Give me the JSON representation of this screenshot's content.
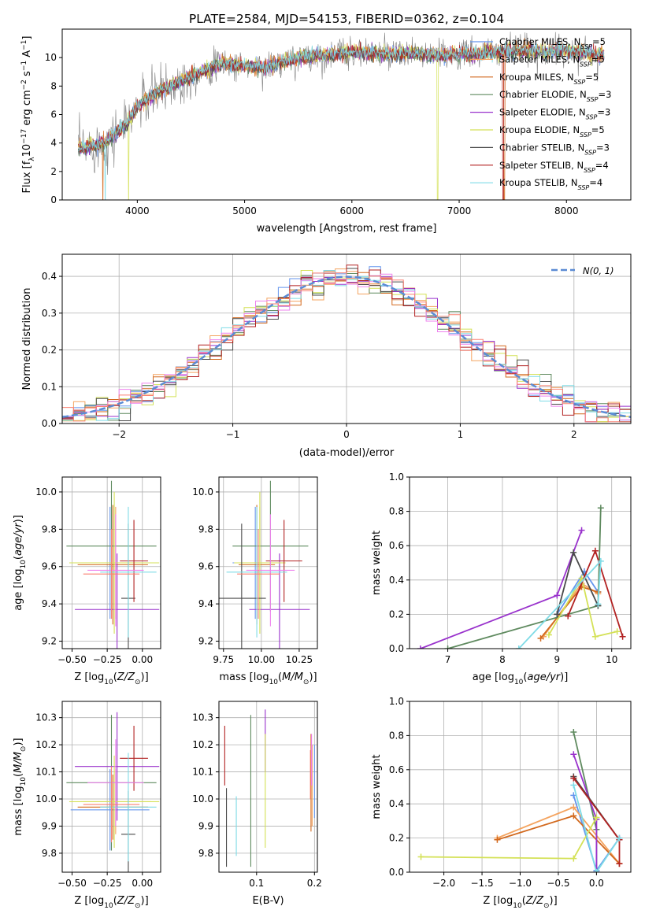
{
  "title": "PLATE=2584, MJD=54153, FIBERID=0362, z=0.104",
  "colors": {
    "data": "#808080",
    "Chabrier MILES": "#6495ed",
    "Salpeter MILES": "#f4a460",
    "Kroupa MILES": "#d2691e",
    "Chabrier ELODIE": "#5f8a5f",
    "Salpeter ELODIE": "#9932cc",
    "Kroupa ELODIE": "#d4e157",
    "Chabrier STELIB": "#4a4a4a",
    "Salpeter STELIB": "#b22222",
    "Kroupa STELIB": "#7fdbe6",
    "extra_pink": "#ee82ee",
    "extra_salmon": "#fa8072",
    "normal_curve": "#5b8bd4"
  },
  "chart_data": [
    {
      "panel": "spectrum",
      "type": "line",
      "xlabel": "wavelength [Angstrom, rest frame]",
      "ylabel": "Flux [f_λ10^-17 erg cm^-2 s^-1 A^-1]",
      "xlim": [
        3300,
        8600
      ],
      "ylim": [
        0,
        12
      ],
      "xticks": [
        "4000",
        "5000",
        "6000",
        "7000",
        "8000"
      ],
      "yticks": [
        "0",
        "2",
        "4",
        "6",
        "8",
        "10"
      ],
      "wavelength_range": [
        3450,
        8350
      ],
      "continuum": [
        {
          "x": 3450,
          "y": 3.6
        },
        {
          "x": 3700,
          "y": 4.0
        },
        {
          "x": 3900,
          "y": 5.3
        },
        {
          "x": 4000,
          "y": 6.6
        },
        {
          "x": 4200,
          "y": 7.6
        },
        {
          "x": 4400,
          "y": 8.3
        },
        {
          "x": 4600,
          "y": 9.0
        },
        {
          "x": 4800,
          "y": 9.6
        },
        {
          "x": 5000,
          "y": 9.4
        },
        {
          "x": 5200,
          "y": 9.3
        },
        {
          "x": 5400,
          "y": 9.8
        },
        {
          "x": 5600,
          "y": 10.1
        },
        {
          "x": 5800,
          "y": 10.2
        },
        {
          "x": 6000,
          "y": 10.4
        },
        {
          "x": 6200,
          "y": 10.3
        },
        {
          "x": 6400,
          "y": 10.2
        },
        {
          "x": 6600,
          "y": 10.3
        },
        {
          "x": 6800,
          "y": 10.1
        },
        {
          "x": 7000,
          "y": 10.2
        },
        {
          "x": 7200,
          "y": 10.3
        },
        {
          "x": 7400,
          "y": 10.4
        },
        {
          "x": 7600,
          "y": 10.5
        },
        {
          "x": 7800,
          "y": 10.4
        },
        {
          "x": 8000,
          "y": 10.5
        },
        {
          "x": 8200,
          "y": 10.3
        },
        {
          "x": 8350,
          "y": 10.2
        }
      ],
      "legend_location": "right",
      "legend": [
        {
          "name": "Chabrier MILES, N",
          "sub": "SSP",
          "val": "=5"
        },
        {
          "name": "Salpeter MILES, N",
          "sub": "SSP",
          "val": "=5"
        },
        {
          "name": "Kroupa MILES, N",
          "sub": "SSP",
          "val": "=5"
        },
        {
          "name": "Chabrier ELODIE, N",
          "sub": "SSP",
          "val": "=3"
        },
        {
          "name": "Salpeter ELODIE, N",
          "sub": "SSP",
          "val": "=3"
        },
        {
          "name": "Kroupa ELODIE, N",
          "sub": "SSP",
          "val": "=5"
        },
        {
          "name": "Chabrier STELIB, N",
          "sub": "SSP",
          "val": "=3"
        },
        {
          "name": "Salpeter STELIB, N",
          "sub": "SSP",
          "val": "=4"
        },
        {
          "name": "Kroupa STELIB, N",
          "sub": "SSP",
          "val": "=4"
        }
      ]
    },
    {
      "panel": "residuals",
      "type": "line",
      "xlabel": "(data-model)/error",
      "ylabel": "Normed distribution",
      "xlim": [
        -2.5,
        2.5
      ],
      "ylim": [
        0,
        0.46
      ],
      "xticks": [
        "−2",
        "−1",
        "0",
        "1",
        "2"
      ],
      "yticks": [
        "0.0",
        "0.1",
        "0.2",
        "0.3",
        "0.4"
      ],
      "grid": true,
      "legend_label": "N(0, 1)",
      "legend_location": "top-right",
      "bin_width": 0.1,
      "bins_from": -2.5
    },
    {
      "panel": "age-vs-Z",
      "type": "scatter",
      "xlabel": "Z [log10(Z/Z⊙)]",
      "ylabel": "age  [log10(age/yr)]",
      "xlim": [
        -0.57,
        0.13
      ],
      "ylim": [
        9.16,
        10.08
      ],
      "xticks": [
        "−0.50",
        "−0.25",
        "0.00"
      ],
      "yticks": [
        "9.2",
        "9.4",
        "9.6",
        "9.8",
        "10.0"
      ],
      "grid": true
    },
    {
      "panel": "age-vs-mass",
      "type": "scatter",
      "xlabel": "mass [log10(M/M⊙)]",
      "ylabel": "",
      "xlim": [
        9.72,
        10.37
      ],
      "ylim": [
        9.16,
        10.08
      ],
      "xticks": [
        "9.75",
        "10.00",
        "10.25"
      ],
      "yticks": [
        "9.2",
        "9.4",
        "9.6",
        "9.8",
        "10.0"
      ],
      "grid": true
    },
    {
      "panel": "weight-vs-age",
      "type": "line",
      "xlabel": "age  [log10(age/yr)]",
      "ylabel": "mass weight",
      "xlim": [
        6.3,
        10.35
      ],
      "ylim": [
        0,
        1
      ],
      "xticks": [
        "7",
        "8",
        "9",
        "10"
      ],
      "yticks": [
        "0.0",
        "0.2",
        "0.4",
        "0.6",
        "0.8",
        "1.0"
      ],
      "grid": true,
      "series": [
        {
          "name": "Chabrier MILES",
          "x": [
            9.0,
            9.5,
            9.75
          ],
          "y": [
            0.2,
            0.45,
            0.33
          ]
        },
        {
          "name": "Salpeter MILES",
          "x": [
            8.75,
            9.45,
            9.75
          ],
          "y": [
            0.07,
            0.38,
            0.32
          ]
        },
        {
          "name": "Kroupa MILES",
          "x": [
            8.7,
            9.45,
            9.75
          ],
          "y": [
            0.06,
            0.36,
            0.33
          ]
        },
        {
          "name": "Chabrier ELODIE",
          "x": [
            7.0,
            9.75,
            9.8
          ],
          "y": [
            0.0,
            0.25,
            0.82
          ]
        },
        {
          "name": "Salpeter ELODIE",
          "x": [
            6.5,
            9.0,
            9.45
          ],
          "y": [
            0.0,
            0.31,
            0.69
          ]
        },
        {
          "name": "Kroupa ELODIE",
          "x": [
            8.85,
            9.45,
            9.7,
            10.1
          ],
          "y": [
            0.08,
            0.41,
            0.07,
            0.1
          ]
        },
        {
          "name": "Chabrier STELIB",
          "x": [
            9.0,
            9.3,
            9.75
          ],
          "y": [
            0.2,
            0.56,
            0.25
          ]
        },
        {
          "name": "Salpeter STELIB",
          "x": [
            9.2,
            9.7,
            10.2
          ],
          "y": [
            0.19,
            0.57,
            0.07
          ]
        },
        {
          "name": "Kroupa STELIB",
          "x": [
            8.3,
            9.8,
            9.75
          ],
          "y": [
            0.0,
            0.51,
            0.26
          ]
        }
      ]
    },
    {
      "panel": "mass-vs-Z",
      "type": "scatter",
      "xlabel": "Z [log10(Z/Z⊙)]",
      "ylabel": "mass [log10(M/M⊙)]",
      "xlim": [
        -0.57,
        0.13
      ],
      "ylim": [
        9.73,
        10.36
      ],
      "xticks": [
        "−0.50",
        "−0.25",
        "0.00"
      ],
      "yticks": [
        "9.8",
        "9.9",
        "10.0",
        "10.1",
        "10.2",
        "10.3"
      ],
      "grid": true
    },
    {
      "panel": "mass-vs-EBV",
      "type": "scatter",
      "xlabel": "E(B-V)",
      "ylabel": "",
      "xlim": [
        0.035,
        0.205
      ],
      "ylim": [
        9.73,
        10.36
      ],
      "xticks": [
        "0.1",
        "0.2"
      ],
      "yticks": [
        "9.8",
        "9.9",
        "10.0",
        "10.1",
        "10.2",
        "10.3"
      ],
      "grid": true
    },
    {
      "panel": "weight-vs-Z",
      "type": "line",
      "xlabel": "Z [log10(Z/Z⊙)]",
      "ylabel": "mass weight",
      "xlim": [
        -2.45,
        0.45
      ],
      "ylim": [
        0,
        1
      ],
      "xticks": [
        "−2.0",
        "−1.5",
        "−1.0",
        "−0.5",
        "0.0"
      ],
      "yticks": [
        "0.0",
        "0.2",
        "0.4",
        "0.6",
        "0.8",
        "1.0"
      ],
      "grid": true,
      "series": [
        {
          "name": "Chabrier MILES",
          "x": [
            -0.3,
            0.0,
            0.3
          ],
          "y": [
            0.45,
            0.01,
            0.2
          ]
        },
        {
          "name": "Salpeter MILES",
          "x": [
            -1.3,
            -0.3,
            0.3
          ],
          "y": [
            0.2,
            0.38,
            0.05
          ]
        },
        {
          "name": "Kroupa MILES",
          "x": [
            -1.3,
            -0.3,
            0.3
          ],
          "y": [
            0.19,
            0.33,
            0.05
          ]
        },
        {
          "name": "Chabrier ELODIE",
          "x": [
            -0.3,
            0.0,
            0.0
          ],
          "y": [
            0.82,
            0.25,
            0.0
          ]
        },
        {
          "name": "Salpeter ELODIE",
          "x": [
            -0.3,
            0.0,
            0.0
          ],
          "y": [
            0.69,
            0.31,
            0.0
          ]
        },
        {
          "name": "Kroupa ELODIE",
          "x": [
            -2.3,
            -0.3,
            0.0
          ],
          "y": [
            0.09,
            0.08,
            0.32
          ]
        },
        {
          "name": "Chabrier STELIB",
          "x": [
            -0.3,
            0.3
          ],
          "y": [
            0.56,
            0.19
          ]
        },
        {
          "name": "Salpeter STELIB",
          "x": [
            -0.3,
            0.3,
            0.3
          ],
          "y": [
            0.55,
            0.19,
            0.05
          ]
        },
        {
          "name": "Kroupa STELIB",
          "x": [
            -0.3,
            0.0,
            0.3
          ],
          "y": [
            0.51,
            0.0,
            0.2
          ]
        }
      ]
    }
  ],
  "errorbars": {
    "colors": [
      "#6495ed",
      "#f4a460",
      "#d2691e",
      "#5f8a5f",
      "#9932cc",
      "#d4e157",
      "#4a4a4a",
      "#b22222",
      "#7fdbe6",
      "#ee82ee",
      "#fa8072"
    ],
    "Z": [
      -0.23,
      -0.19,
      -0.21,
      -0.22,
      -0.18,
      -0.2,
      -0.1,
      -0.06,
      -0.1,
      -0.19,
      -0.22
    ],
    "Z_err": [
      0.28,
      0.25,
      0.25,
      0.32,
      0.3,
      0.32,
      0.05,
      0.1,
      0.2,
      0.2,
      0.2
    ],
    "age": [
      9.62,
      9.62,
      9.61,
      9.71,
      9.37,
      9.62,
      9.43,
      9.63,
      9.57,
      9.58,
      9.56
    ],
    "age_err": [
      0.3,
      0.3,
      0.32,
      0.35,
      0.3,
      0.38,
      0.4,
      0.22,
      0.35,
      0.3,
      0.24
    ],
    "mass": [
      9.96,
      9.99,
      9.97,
      10.06,
      10.12,
      9.99,
      9.87,
      10.15,
      9.97,
      10.06,
      9.98
    ],
    "mass_err": [
      0.15,
      0.12,
      0.12,
      0.25,
      0.2,
      0.17,
      0.16,
      0.12,
      0.2,
      0.16,
      0.14
    ],
    "ebv": [
      0.2,
      0.196,
      0.194,
      0.09,
      0.115,
      0.115,
      0.048,
      0.045,
      0.065,
      0.195,
      0.193
    ],
    "ebv_lo": [
      9.93,
      9.9,
      9.88,
      9.75,
      10.1,
      9.82,
      9.75,
      10.05,
      9.79,
      10.05,
      10.0
    ],
    "ebv_hi": [
      10.2,
      10.2,
      10.24,
      10.31,
      10.33,
      10.24,
      10.04,
      10.27,
      10.01,
      10.24,
      10.18
    ]
  }
}
